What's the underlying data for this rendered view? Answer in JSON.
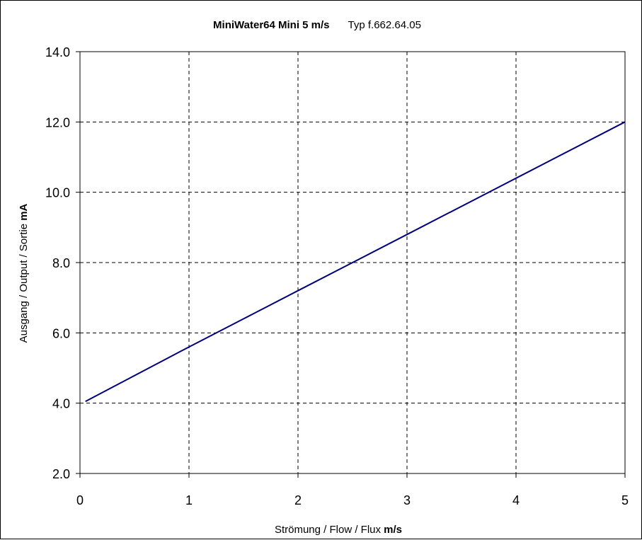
{
  "chart_data": {
    "type": "line",
    "title": "MiniWater64 Mini 5 m/s",
    "subtitle": "Typ f.662.64.05",
    "xlabel": "Strömung / Flow / Flux",
    "xlabel_unit": "m/s",
    "ylabel": "Ausgang / Output / Sortie",
    "ylabel_unit": "mA",
    "xlim": [
      0,
      5
    ],
    "ylim": [
      2.0,
      14.0
    ],
    "x_ticks": [
      "0",
      "1",
      "2",
      "3",
      "4",
      "5"
    ],
    "y_ticks": [
      "2.0",
      "4.0",
      "6.0",
      "8.0",
      "10.0",
      "12.0",
      "14.0"
    ],
    "grid": true,
    "grid_style": "dashed",
    "series": [
      {
        "color": "#000080",
        "x": [
          0.05,
          1,
          2,
          3,
          4,
          5
        ],
        "y": [
          4.05,
          5.6,
          7.2,
          8.8,
          10.4,
          12.0
        ]
      }
    ]
  }
}
